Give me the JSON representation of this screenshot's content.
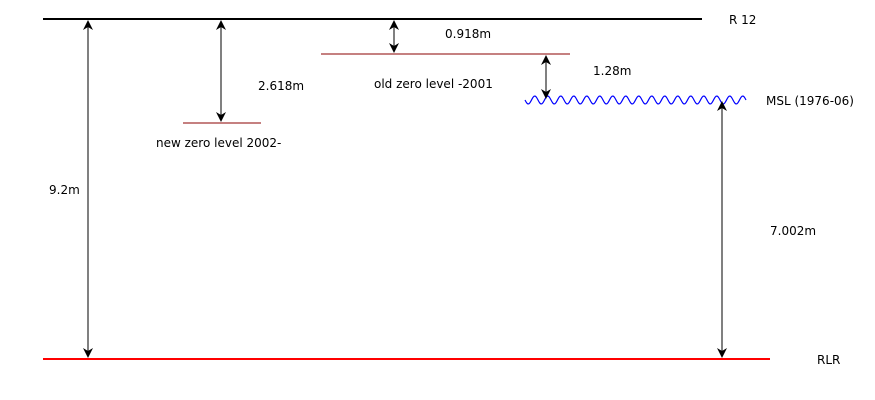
{
  "colors": {
    "reference_line": "#000000",
    "zero_level_line": "#8b0000",
    "rlr_line": "#ff0000",
    "msl_wave": "#0000ff",
    "arrow": "#000000",
    "text": "#000000"
  },
  "levels": {
    "r12": {
      "label": "R 12"
    },
    "old_zero": {
      "label": "old zero level -2001"
    },
    "new_zero": {
      "label": "new zero level 2002-"
    },
    "msl": {
      "label": "MSL (1976-06)"
    },
    "rlr": {
      "label": "RLR"
    }
  },
  "measurements": {
    "r12_to_rlr": "9.2m",
    "r12_to_new_zero": "2.618m",
    "r12_to_old_zero": "0.918m",
    "old_zero_to_msl": "1.28m",
    "msl_to_rlr": "7.002m"
  }
}
